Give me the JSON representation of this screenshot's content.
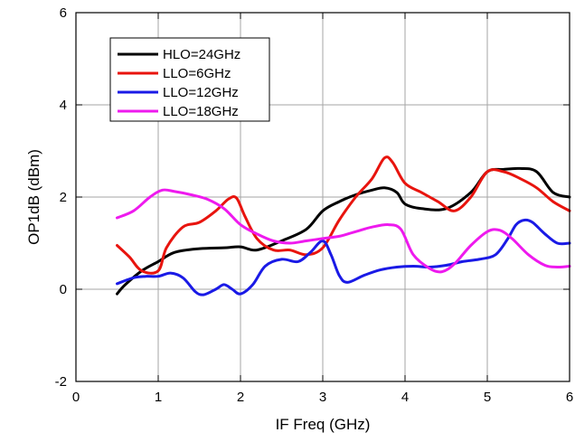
{
  "chart_data": {
    "type": "line",
    "title": "",
    "xlabel": "IF Freq (GHz)",
    "ylabel": "OP1dB (dBm)",
    "xlim": [
      0,
      6
    ],
    "ylim": [
      -2,
      6
    ],
    "xticks": [
      0,
      1,
      2,
      3,
      4,
      5,
      6
    ],
    "yticks": [
      -2,
      0,
      2,
      4,
      6
    ],
    "grid": true,
    "legend_position": "top-left",
    "series": [
      {
        "name": "HLO=24GHz",
        "color": "#000000",
        "x": [
          0.5,
          0.6,
          0.8,
          1.0,
          1.2,
          1.5,
          1.8,
          2.0,
          2.2,
          2.5,
          2.8,
          3.0,
          3.2,
          3.4,
          3.6,
          3.75,
          3.9,
          4.0,
          4.2,
          4.5,
          4.8,
          5.0,
          5.2,
          5.4,
          5.6,
          5.8,
          6.0
        ],
        "y": [
          -0.1,
          0.1,
          0.4,
          0.6,
          0.8,
          0.88,
          0.9,
          0.92,
          0.85,
          1.05,
          1.3,
          1.7,
          1.9,
          2.05,
          2.15,
          2.2,
          2.1,
          1.85,
          1.75,
          1.75,
          2.1,
          2.55,
          2.6,
          2.62,
          2.55,
          2.1,
          2.0
        ]
      },
      {
        "name": "LLO=6GHz",
        "color": "#e8140e",
        "x": [
          0.5,
          0.65,
          0.8,
          1.0,
          1.1,
          1.3,
          1.5,
          1.7,
          1.85,
          1.95,
          2.05,
          2.2,
          2.4,
          2.6,
          2.8,
          3.0,
          3.2,
          3.4,
          3.6,
          3.75,
          3.85,
          4.0,
          4.2,
          4.4,
          4.6,
          4.8,
          5.0,
          5.2,
          5.4,
          5.6,
          5.8,
          6.0
        ],
        "y": [
          0.95,
          0.7,
          0.4,
          0.4,
          0.9,
          1.35,
          1.45,
          1.7,
          1.95,
          1.98,
          1.6,
          1.1,
          0.85,
          0.85,
          0.75,
          0.9,
          1.5,
          2.0,
          2.4,
          2.85,
          2.75,
          2.3,
          2.1,
          1.9,
          1.7,
          2.0,
          2.55,
          2.55,
          2.4,
          2.2,
          1.9,
          1.7
        ]
      },
      {
        "name": "LLO=12GHz",
        "color": "#1a1ae6",
        "x": [
          0.5,
          0.7,
          0.85,
          1.0,
          1.15,
          1.3,
          1.45,
          1.55,
          1.7,
          1.8,
          1.9,
          2.0,
          2.15,
          2.3,
          2.5,
          2.7,
          2.85,
          3.0,
          3.1,
          3.2,
          3.3,
          3.5,
          3.7,
          3.9,
          4.1,
          4.3,
          4.5,
          4.7,
          4.9,
          5.1,
          5.25,
          5.35,
          5.45,
          5.55,
          5.7,
          5.85,
          6.0
        ],
        "y": [
          0.12,
          0.25,
          0.28,
          0.28,
          0.35,
          0.25,
          -0.05,
          -0.12,
          0.0,
          0.1,
          0.0,
          -0.1,
          0.1,
          0.5,
          0.65,
          0.6,
          0.8,
          1.05,
          0.75,
          0.3,
          0.15,
          0.3,
          0.42,
          0.48,
          0.5,
          0.48,
          0.52,
          0.6,
          0.65,
          0.75,
          1.1,
          1.4,
          1.5,
          1.45,
          1.2,
          1.0,
          1.0
        ]
      },
      {
        "name": "LLO=18GHz",
        "color": "#ee1aee",
        "x": [
          0.5,
          0.7,
          0.9,
          1.05,
          1.2,
          1.4,
          1.6,
          1.8,
          2.0,
          2.2,
          2.4,
          2.6,
          2.8,
          3.0,
          3.2,
          3.4,
          3.6,
          3.8,
          3.95,
          4.1,
          4.3,
          4.45,
          4.6,
          4.8,
          5.0,
          5.15,
          5.3,
          5.5,
          5.7,
          5.85,
          6.0
        ],
        "y": [
          1.55,
          1.7,
          2.0,
          2.15,
          2.12,
          2.05,
          1.95,
          1.75,
          1.4,
          1.2,
          1.05,
          1.0,
          1.05,
          1.1,
          1.15,
          1.25,
          1.35,
          1.4,
          1.3,
          0.75,
          0.45,
          0.38,
          0.55,
          0.95,
          1.25,
          1.28,
          1.1,
          0.75,
          0.52,
          0.48,
          0.5
        ]
      }
    ]
  }
}
